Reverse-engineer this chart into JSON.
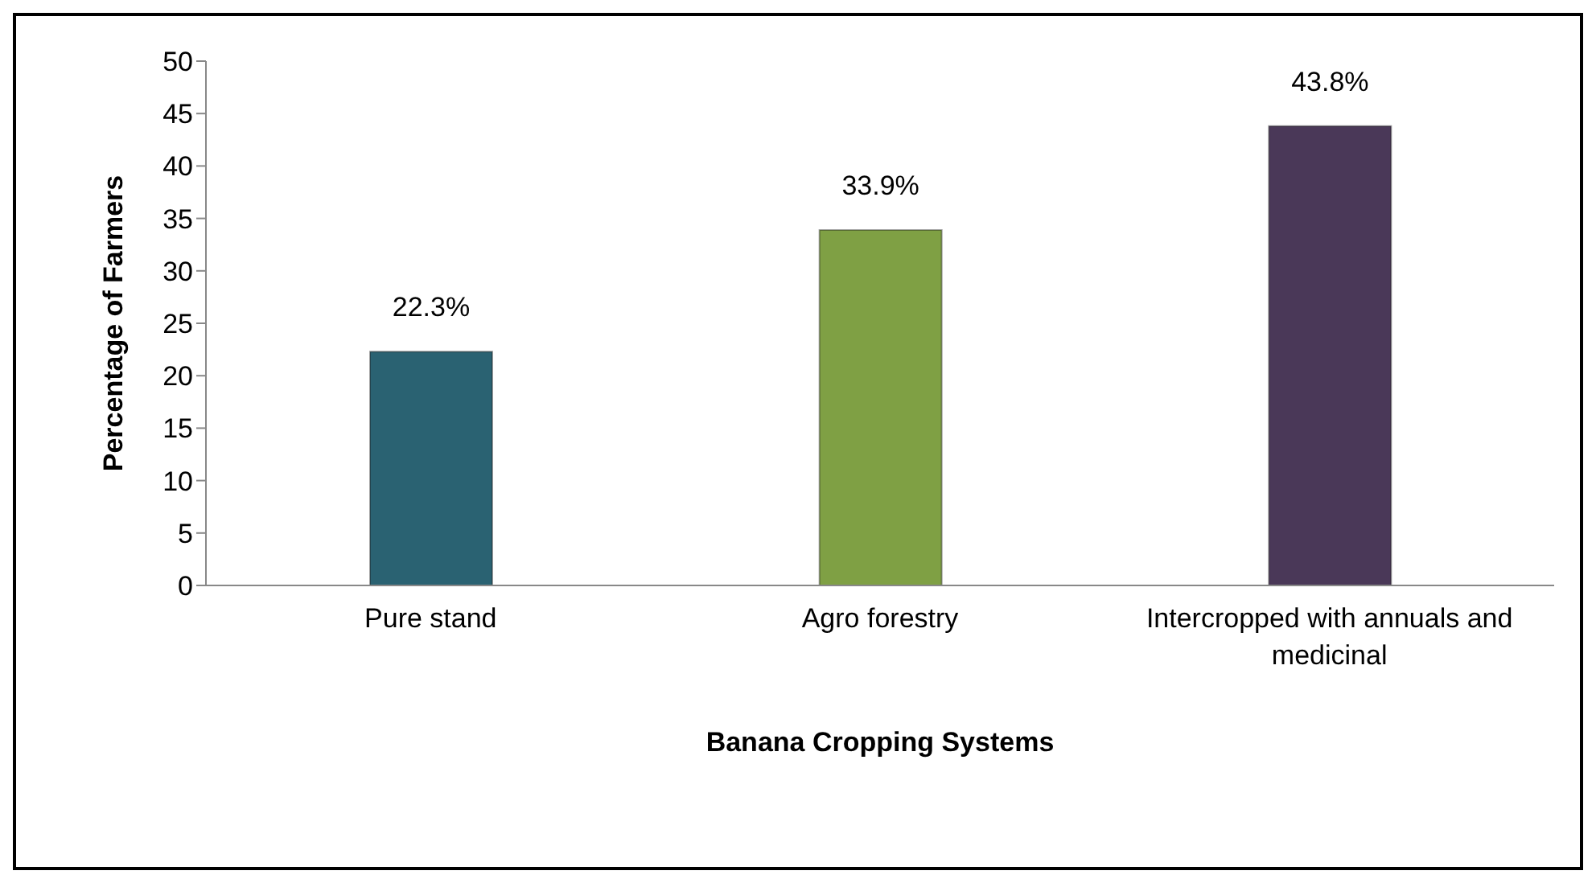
{
  "chart_data": {
    "type": "bar",
    "xlabel": "Banana Cropping Systems",
    "ylabel": "Percentage of Farmers",
    "categories": [
      "Pure stand",
      "Agro forestry",
      "Intercropped with annuals and medicinal"
    ],
    "values": [
      22.3,
      33.9,
      43.8
    ],
    "colors": [
      "#2a6272",
      "#7fa044",
      "#4a3858"
    ],
    "value_labels": [
      "22.3%",
      "33.9%",
      "43.8%"
    ],
    "ylim": [
      0,
      50
    ],
    "yticks": [
      0,
      5,
      10,
      15,
      20,
      25,
      30,
      35,
      40,
      45,
      50
    ],
    "grid": false,
    "legend": false
  }
}
